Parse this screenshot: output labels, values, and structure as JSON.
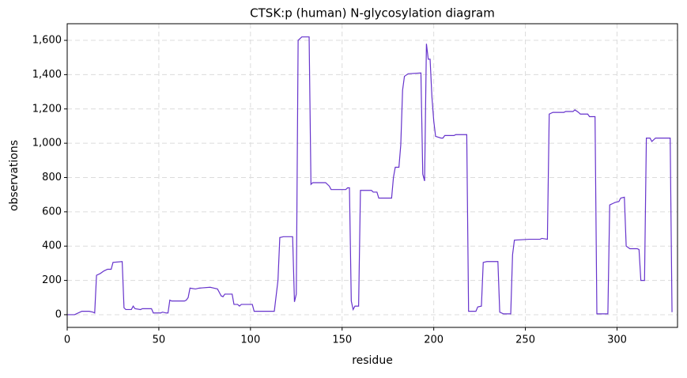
{
  "chart_data": {
    "type": "line",
    "title": "CTSK:p (human) N-glycosylation diagram",
    "x_label": "residue",
    "y_label": "observations",
    "x": [
      0,
      4,
      7,
      8,
      12,
      14,
      15,
      16,
      18,
      20,
      22,
      24,
      25,
      30,
      31,
      32,
      35,
      36,
      37,
      40,
      41,
      46,
      47,
      51,
      52,
      54,
      55,
      56,
      57,
      64,
      65,
      66,
      67,
      70,
      72,
      78,
      80,
      82,
      83,
      84,
      85,
      86,
      90,
      91,
      93,
      94,
      95,
      101,
      102,
      113,
      115,
      116,
      118,
      123,
      124,
      125,
      126,
      128,
      132,
      133,
      134,
      141,
      143,
      144,
      152,
      153,
      154,
      155,
      156,
      157,
      159,
      160,
      166,
      167,
      169,
      170,
      177,
      178,
      179,
      181,
      182,
      183,
      184,
      186,
      193,
      194,
      195,
      196,
      197,
      198,
      199,
      200,
      201,
      204,
      205,
      206,
      211,
      212,
      218,
      219,
      223,
      224,
      226,
      227,
      229,
      235,
      236,
      238,
      242,
      243,
      244,
      252,
      258,
      259,
      262,
      263,
      265,
      271,
      272,
      276,
      277,
      279,
      280,
      284,
      285,
      288,
      289,
      295,
      296,
      298,
      299,
      301,
      302,
      304,
      305,
      307,
      311,
      312,
      313,
      315,
      316,
      318,
      319,
      321,
      329,
      330
    ],
    "series": [
      {
        "name": "observations",
        "color": "#6633cc",
        "values": [
          0,
          0,
          15,
          20,
          20,
          15,
          10,
          230,
          240,
          255,
          265,
          265,
          305,
          310,
          40,
          30,
          30,
          50,
          35,
          30,
          35,
          35,
          10,
          10,
          15,
          10,
          10,
          85,
          80,
          80,
          85,
          100,
          155,
          150,
          155,
          160,
          155,
          150,
          130,
          110,
          105,
          120,
          120,
          60,
          60,
          50,
          60,
          60,
          20,
          20,
          200,
          450,
          455,
          455,
          75,
          120,
          1600,
          1620,
          1620,
          760,
          770,
          770,
          750,
          730,
          730,
          740,
          740,
          80,
          30,
          50,
          50,
          725,
          725,
          715,
          715,
          680,
          680,
          800,
          860,
          860,
          990,
          1310,
          1390,
          1405,
          1410,
          820,
          780,
          1580,
          1490,
          1490,
          1270,
          1130,
          1040,
          1030,
          1030,
          1045,
          1045,
          1050,
          1050,
          20,
          20,
          45,
          50,
          305,
          310,
          310,
          15,
          5,
          5,
          350,
          435,
          440,
          440,
          445,
          440,
          1170,
          1180,
          1180,
          1185,
          1185,
          1195,
          1180,
          1170,
          1170,
          1155,
          1155,
          5,
          5,
          640,
          650,
          655,
          660,
          680,
          685,
          400,
          385,
          385,
          380,
          200,
          200,
          1030,
          1030,
          1010,
          1030,
          1030,
          15
        ]
      }
    ],
    "xlim": [
      0,
      333
    ],
    "ylim": [
      -74,
      1697
    ],
    "xticks": [
      0,
      50,
      100,
      150,
      200,
      250,
      300
    ],
    "yticks": [
      0,
      200,
      400,
      600,
      800,
      {
        "value": 1000,
        "label": "1,000"
      },
      {
        "value": 1200,
        "label": "1,200"
      },
      {
        "value": 1400,
        "label": "1,400"
      },
      {
        "value": 1600,
        "label": "1,600"
      }
    ],
    "grid": true
  }
}
